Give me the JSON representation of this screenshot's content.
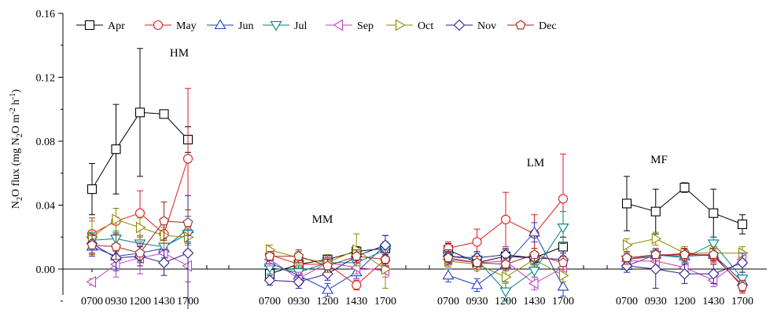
{
  "chart_data": {
    "type": "line",
    "ylabel": "N2O flux (mg N2O m-2 h-1)",
    "ylim": [
      -0.02,
      0.16
    ],
    "yticks": [
      "0.00",
      "0.04",
      "0.08",
      "0.12",
      "0.16"
    ],
    "yticks_values": [
      0.0,
      0.04,
      0.08,
      0.12,
      0.16
    ],
    "x_tick_labels": [
      "0700",
      "0930",
      "1200",
      "1430",
      "1700"
    ],
    "panels": [
      {
        "label": "HM",
        "series": {
          "Apr": {
            "values": [
              0.05,
              0.075,
              0.098,
              0.097,
              0.081
            ],
            "errors": [
              0.016,
              0.028,
              0.04,
              0.002,
              0.008
            ]
          },
          "May": {
            "values": [
              0.022,
              0.03,
              0.035,
              0.022,
              0.069
            ],
            "errors": [
              0.01,
              0.008,
              0.014,
              0.01,
              0.044
            ]
          },
          "Jun": {
            "values": [
              0.014,
              0.008,
              0.01,
              0.013,
              0.025
            ],
            "errors": [
              0.006,
              0.008,
              0.005,
              0.006,
              0.008
            ]
          },
          "Jul": {
            "values": [
              0.018,
              0.019,
              0.016,
              0.014,
              0.022
            ],
            "errors": [
              0.005,
              0.004,
              0.004,
              0.005,
              0.006
            ]
          },
          "Sep": {
            "values": [
              -0.008,
              0.003,
              0.007,
              0.01,
              0.002
            ],
            "errors": [
              0.002,
              0.008,
              0.01,
              0.008,
              0.01
            ]
          },
          "Oct": {
            "values": [
              0.02,
              0.031,
              0.026,
              0.021,
              0.02
            ],
            "errors": [
              0.01,
              0.007,
              0.006,
              0.005,
              0.005
            ]
          },
          "Nov": {
            "values": [
              0.016,
              0.007,
              0.008,
              0.004,
              0.01
            ],
            "errors": [
              0.006,
              0.008,
              0.006,
              0.008,
              0.036
            ]
          },
          "Dec": {
            "values": [
              0.015,
              0.014,
              0.01,
              0.03,
              0.029
            ],
            "errors": [
              0.006,
              0.008,
              0.006,
              0.012,
              0.008
            ]
          }
        }
      },
      {
        "label": "MM",
        "series": {
          "Apr": {
            "values": [
              -0.003,
              0.003,
              0.006,
              0.011,
              0.013
            ],
            "errors": [
              0.004,
              0.004,
              0.003,
              0.003,
              0.004
            ]
          },
          "May": {
            "values": [
              0.009,
              0.003,
              0.003,
              -0.01,
              0.006
            ],
            "errors": [
              0.003,
              0.004,
              0.004,
              0.003,
              0.004
            ]
          },
          "Jun": {
            "values": [
              0.004,
              -0.004,
              -0.013,
              -0.002,
              0.015
            ],
            "errors": [
              0.004,
              0.006,
              0.004,
              0.004,
              0.006
            ]
          },
          "Jul": {
            "values": [
              0.001,
              -0.002,
              0.004,
              0.004,
              0.012
            ],
            "errors": [
              0.004,
              0.004,
              0.004,
              0.004,
              0.005
            ]
          },
          "Sep": {
            "values": [
              0.006,
              -0.006,
              0.004,
              0.001,
              -0.001
            ],
            "errors": [
              0.004,
              0.004,
              0.004,
              0.004,
              0.004
            ]
          },
          "Oct": {
            "values": [
              0.012,
              0.007,
              0.004,
              0.012,
              0.0
            ],
            "errors": [
              0.003,
              0.004,
              0.005,
              0.01,
              0.012
            ]
          },
          "Nov": {
            "values": [
              -0.007,
              -0.008,
              -0.003,
              0.008,
              0.015
            ],
            "errors": [
              0.003,
              0.004,
              0.004,
              0.004,
              0.006
            ]
          },
          "Dec": {
            "values": [
              0.008,
              0.008,
              0.002,
              0.008,
              0.006
            ],
            "errors": [
              0.003,
              0.004,
              0.004,
              0.004,
              0.004
            ]
          }
        }
      },
      {
        "label": "LM",
        "series": {
          "Apr": {
            "values": [
              0.012,
              0.004,
              0.008,
              0.007,
              0.014
            ],
            "errors": [
              0.004,
              0.004,
              0.004,
              0.003,
              0.006
            ]
          },
          "May": {
            "values": [
              0.013,
              0.017,
              0.031,
              0.022,
              0.044
            ],
            "errors": [
              0.004,
              0.008,
              0.017,
              0.012,
              0.028
            ]
          },
          "Jun": {
            "values": [
              -0.004,
              -0.01,
              0.003,
              0.023,
              -0.011
            ],
            "errors": [
              0.004,
              0.004,
              0.004,
              0.006,
              0.006
            ]
          },
          "Jul": {
            "values": [
              0.008,
              0.006,
              -0.014,
              -0.001,
              0.026
            ],
            "errors": [
              0.004,
              0.004,
              0.006,
              0.004,
              0.01
            ]
          },
          "Sep": {
            "values": [
              0.006,
              0.004,
              0.005,
              -0.009,
              0.001
            ],
            "errors": [
              0.004,
              0.004,
              0.004,
              0.004,
              0.004
            ]
          },
          "Oct": {
            "values": [
              0.005,
              0.003,
              -0.005,
              0.006,
              -0.004
            ],
            "errors": [
              0.004,
              0.004,
              0.004,
              0.004,
              0.004
            ]
          },
          "Nov": {
            "values": [
              0.008,
              0.007,
              0.009,
              0.007,
              0.006
            ],
            "errors": [
              0.004,
              0.004,
              0.004,
              0.004,
              0.004
            ]
          },
          "Dec": {
            "values": [
              0.007,
              0.004,
              0.003,
              0.009,
              0.004
            ],
            "errors": [
              0.004,
              0.004,
              0.004,
              0.004,
              0.004
            ]
          }
        }
      },
      {
        "label": "MF",
        "series": {
          "Apr": {
            "values": [
              0.041,
              0.036,
              0.051,
              0.035,
              0.028
            ],
            "errors": [
              0.017,
              0.014,
              0.003,
              0.015,
              0.006
            ]
          },
          "May": {
            "values": [
              0.006,
              0.008,
              0.01,
              0.008,
              -0.01
            ],
            "errors": [
              0.004,
              0.004,
              0.004,
              0.004,
              0.004
            ]
          },
          "Jun": {
            "values": [
              0.002,
              0.009,
              0.008,
              0.009,
              -0.008
            ],
            "errors": [
              0.004,
              0.004,
              0.004,
              0.004,
              0.004
            ]
          },
          "Jul": {
            "values": [
              0.006,
              0.009,
              0.007,
              0.016,
              -0.006
            ],
            "errors": [
              0.004,
              0.004,
              0.004,
              0.004,
              0.004
            ]
          },
          "Sep": {
            "values": [
              0.005,
              0.005,
              0.001,
              -0.007,
              0.006
            ],
            "errors": [
              0.004,
              0.004,
              0.004,
              0.004,
              0.004
            ]
          },
          "Oct": {
            "values": [
              0.015,
              0.019,
              0.01,
              0.01,
              0.01
            ],
            "errors": [
              0.004,
              0.004,
              0.004,
              0.004,
              0.004
            ]
          },
          "Nov": {
            "values": [
              0.002,
              0.0,
              -0.003,
              -0.003,
              0.004
            ],
            "errors": [
              0.004,
              0.012,
              0.006,
              0.006,
              0.006
            ]
          },
          "Dec": {
            "values": [
              0.007,
              0.009,
              0.009,
              0.009,
              -0.011
            ],
            "errors": [
              0.004,
              0.004,
              0.004,
              0.004,
              0.004
            ]
          }
        }
      }
    ],
    "legend": [
      {
        "name": "Apr",
        "color": "#000000",
        "marker": "square"
      },
      {
        "name": "May",
        "color": "#e41a1c",
        "marker": "circle"
      },
      {
        "name": "Jun",
        "color": "#1f3fbf",
        "marker": "triangle-up"
      },
      {
        "name": "Jul",
        "color": "#008080",
        "marker": "triangle-down"
      },
      {
        "name": "Sep",
        "color": "#c040c0",
        "marker": "triangle-left"
      },
      {
        "name": "Oct",
        "color": "#8b8b00",
        "marker": "triangle-right"
      },
      {
        "name": "Nov",
        "color": "#2b1e8c",
        "marker": "diamond"
      },
      {
        "name": "Dec",
        "color": "#a0261b",
        "marker": "pentagon"
      }
    ],
    "legend_position": "top-left",
    "grid": false
  }
}
